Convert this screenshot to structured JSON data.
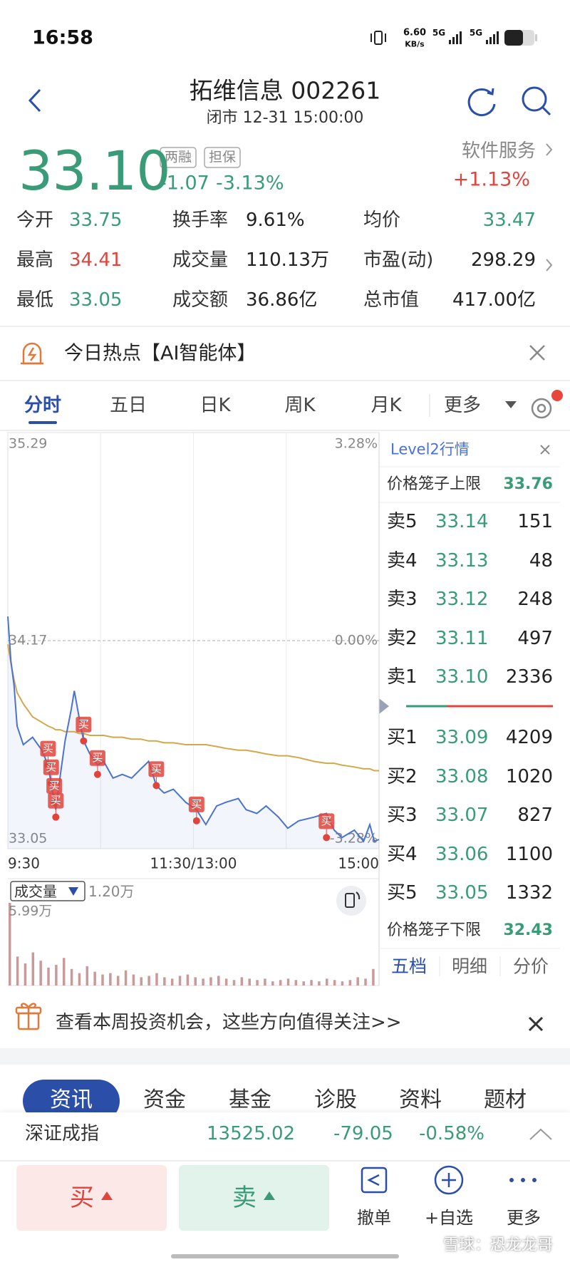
{
  "status_bar": {
    "time": "16:58",
    "speed": "6.60",
    "speed_unit": "KB/s",
    "net": [
      "5G",
      "5G"
    ]
  },
  "header": {
    "title": "拓维信息 002261",
    "subtitle": "闭市 12-31 15:00:00"
  },
  "quote": {
    "price": "33.10",
    "tags": [
      "两融",
      "担保"
    ],
    "change": "-1.07",
    "change_pct": "-3.13%",
    "sector": "软件服务",
    "sector_change": "+1.13%",
    "down_color": "#3a9b78",
    "up_color": "#e0443c"
  },
  "stats": [
    [
      {
        "label": "今开",
        "value": "33.75",
        "color": "#3a9b78"
      },
      {
        "label": "换手率",
        "value": "9.61%"
      },
      {
        "label": "均价",
        "value": "33.47",
        "color": "#3a9b78"
      }
    ],
    [
      {
        "label": "最高",
        "value": "34.41",
        "color": "#e0443c"
      },
      {
        "label": "成交量",
        "value": "110.13万"
      },
      {
        "label": "市盈(动)",
        "value": "298.29"
      }
    ],
    [
      {
        "label": "最低",
        "value": "33.05",
        "color": "#3a9b78"
      },
      {
        "label": "成交额",
        "value": "36.86亿"
      },
      {
        "label": "总市值",
        "value": "417.00亿"
      }
    ]
  ],
  "hot_topic": "今日热点【AI智能体】",
  "tabs": [
    "分时",
    "五日",
    "日K",
    "周K",
    "月K",
    "更多"
  ],
  "active_tab": 0,
  "chart_data": [
    {
      "type": "line",
      "x": [
        0,
        2,
        4,
        6,
        10,
        16,
        22,
        26,
        29,
        31,
        34,
        37,
        41,
        43,
        46,
        49,
        53,
        58,
        62,
        68,
        74,
        80,
        86,
        91,
        96,
        101,
        107,
        115,
        122,
        128,
        135,
        141,
        149,
        154,
        161,
        167,
        175,
        181,
        188,
        198,
        206,
        211,
        216,
        224,
        230,
        234,
        237,
        240
      ],
      "series": [
        {
          "color": "#4a73cf",
          "values": [
            34.3,
            34.06,
            33.93,
            33.71,
            33.61,
            33.65,
            33.58,
            33.5,
            33.35,
            33.26,
            33.45,
            33.63,
            33.8,
            33.9,
            33.76,
            33.63,
            33.56,
            33.5,
            33.52,
            33.43,
            33.45,
            33.43,
            33.48,
            33.52,
            33.39,
            33.35,
            33.37,
            33.3,
            33.26,
            33.18,
            33.28,
            33.3,
            33.32,
            33.26,
            33.24,
            33.28,
            33.22,
            33.16,
            33.2,
            33.22,
            33.24,
            33.15,
            33.11,
            33.15,
            33.09,
            33.18,
            33.09,
            33.1
          ]
        },
        {
          "color": "#d2a94a",
          "values": [
            34.15,
            34.05,
            33.96,
            33.89,
            33.83,
            33.76,
            33.73,
            33.71,
            33.7,
            33.69,
            33.69,
            33.68,
            33.68,
            33.68,
            33.67,
            33.67,
            33.66,
            33.66,
            33.66,
            33.65,
            33.65,
            33.64,
            33.64,
            33.63,
            33.63,
            33.62,
            33.62,
            33.61,
            33.61,
            33.61,
            33.6,
            33.59,
            33.58,
            33.58,
            33.57,
            33.56,
            33.55,
            33.55,
            33.54,
            33.52,
            33.51,
            33.51,
            33.5,
            33.49,
            33.48,
            33.48,
            33.47,
            33.47
          ]
        }
      ],
      "markers": [
        {
          "label": "买",
          "x": 26,
          "price": 33.5
        },
        {
          "label": "买",
          "x": 28,
          "price": 33.4
        },
        {
          "label": "买",
          "x": 30,
          "price": 33.3
        },
        {
          "label": "买",
          "x": 31,
          "price": 33.22
        },
        {
          "label": "买",
          "x": 49,
          "price": 33.63
        },
        {
          "label": "买",
          "x": 58,
          "price": 33.45
        },
        {
          "label": "买",
          "x": 96,
          "price": 33.39
        },
        {
          "label": "买",
          "x": 122,
          "price": 33.2
        },
        {
          "label": "买",
          "x": 206,
          "price": 33.11
        }
      ],
      "marker_color": "#e0443c",
      "xlim": [
        0,
        240
      ],
      "xticks": [
        {
          "value": 0,
          "label": "9:30"
        },
        {
          "value": 120,
          "label": "11:30/13:00"
        },
        {
          "value": 240,
          "label": "15:00"
        }
      ],
      "xgrid": [
        60,
        120,
        180
      ],
      "ylim": [
        33.05,
        35.29
      ],
      "yticks": [
        33.05,
        34.17,
        35.29
      ],
      "y2lim": [
        -3.28,
        3.28
      ],
      "y2ticks": [
        {
          "value": 3.28,
          "label": "3.28%"
        },
        {
          "value": 0,
          "label": "0.00%"
        },
        {
          "value": -3.28,
          "label": "-3.28%"
        }
      ],
      "grid": true
    },
    {
      "type": "bar",
      "selector": "成交量",
      "last": "1.20万",
      "x": [
        0,
        5,
        10,
        15,
        20,
        25,
        30,
        35,
        40,
        45,
        50,
        55,
        60,
        65,
        70,
        75,
        80,
        85,
        90,
        95,
        100,
        105,
        110,
        115,
        120,
        125,
        130,
        135,
        140,
        145,
        150,
        155,
        160,
        165,
        170,
        175,
        180,
        185,
        190,
        195,
        200,
        205,
        210,
        215,
        220,
        225,
        230,
        235
      ],
      "values": [
        5.99,
        2.1,
        1.6,
        2.4,
        1.8,
        1.3,
        1.5,
        2.0,
        1.2,
        0.9,
        1.4,
        1.0,
        0.8,
        0.9,
        0.7,
        1.1,
        0.8,
        0.6,
        0.7,
        0.9,
        0.6,
        0.5,
        0.7,
        0.8,
        0.6,
        0.5,
        0.6,
        0.7,
        0.5,
        0.4,
        0.6,
        0.5,
        0.4,
        0.5,
        0.3,
        0.4,
        0.5,
        0.4,
        0.3,
        0.4,
        0.3,
        0.5,
        0.4,
        0.3,
        0.4,
        0.6,
        0.5,
        1.2
      ],
      "color": "#c99a9a",
      "xlim": [
        0,
        240
      ],
      "ylim": [
        0,
        5.99
      ],
      "yticks": [
        {
          "value": 5.99,
          "label": "5.99万"
        }
      ]
    }
  ],
  "order_book": {
    "title": "Level2行情",
    "upper_label": "价格笼子上限",
    "upper": "33.76",
    "asks": [
      {
        "label": "卖5",
        "price": "33.14",
        "volume": "151"
      },
      {
        "label": "卖4",
        "price": "33.13",
        "volume": "48"
      },
      {
        "label": "卖3",
        "price": "33.12",
        "volume": "248"
      },
      {
        "label": "卖2",
        "price": "33.11",
        "volume": "497"
      },
      {
        "label": "卖1",
        "price": "33.10",
        "volume": "2336"
      }
    ],
    "bids": [
      {
        "label": "买1",
        "price": "33.09",
        "volume": "4209"
      },
      {
        "label": "买2",
        "price": "33.08",
        "volume": "1020"
      },
      {
        "label": "买3",
        "price": "33.07",
        "volume": "827"
      },
      {
        "label": "买4",
        "price": "33.06",
        "volume": "1100"
      },
      {
        "label": "买5",
        "price": "33.05",
        "volume": "1332"
      }
    ],
    "lower_label": "价格笼子下限",
    "lower": "32.43",
    "tabs": [
      "五档",
      "明细",
      "分价"
    ],
    "active_tab": 0
  },
  "banner": "查看本周投资机会，这些方向值得关注>>",
  "news_tabs": [
    "资讯",
    "资金",
    "基金",
    "诊股",
    "资料",
    "题材"
  ],
  "news_active": 0,
  "index_bar": {
    "name": "深证成指",
    "value": "13525.02",
    "change": "-79.05",
    "change_pct": "-0.58%"
  },
  "bottom_bar": {
    "buy": "买",
    "sell": "卖",
    "actions": [
      "撤单",
      "+自选",
      "更多"
    ]
  },
  "watermark": "雪球：恐龙龙哥"
}
